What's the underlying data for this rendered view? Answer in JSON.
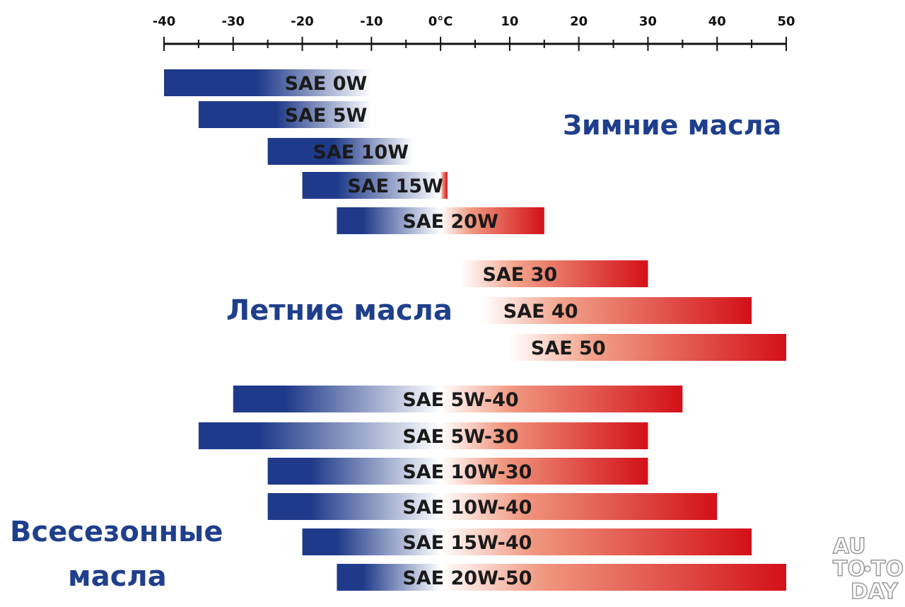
{
  "chart_data": {
    "type": "bar",
    "orientation": "horizontal",
    "x_axis": {
      "ticks": [
        -40,
        -30,
        -20,
        -10,
        0,
        10,
        20,
        30,
        40,
        50
      ],
      "tick_labels": [
        "-40",
        "-30",
        "-20",
        "-10",
        "0°C",
        "10",
        "20",
        "30",
        "40",
        "50"
      ],
      "xlim": [
        -40,
        50
      ]
    },
    "grid": false,
    "bars": [
      {
        "label": "SAE 0W",
        "from": -40,
        "to": -10
      },
      {
        "label": "SAE 5W",
        "from": -35,
        "to": -10
      },
      {
        "label": "SAE 10W",
        "from": -25,
        "to": -4
      },
      {
        "label": "SAE 15W",
        "from": -20,
        "to": 1
      },
      {
        "label": "SAE 20W",
        "from": -15,
        "to": 15
      },
      {
        "label": "SAE 30",
        "from": 3,
        "to": 30
      },
      {
        "label": "SAE 40",
        "from": 6,
        "to": 45
      },
      {
        "label": "SAE 50",
        "from": 10,
        "to": 50
      },
      {
        "label": "SAE 5W-40",
        "from": -30,
        "to": 35
      },
      {
        "label": "SAE 5W-30",
        "from": -35,
        "to": 30
      },
      {
        "label": "SAE 10W-30",
        "from": -25,
        "to": 30
      },
      {
        "label": "SAE 10W-40",
        "from": -25,
        "to": 40
      },
      {
        "label": "SAE 15W-40",
        "from": -20,
        "to": 45
      },
      {
        "label": "SAE 20W-50",
        "from": -15,
        "to": 50
      }
    ],
    "groups": {
      "winter": "Зимние масла",
      "summer": "Летние масла",
      "all_season_line1": "Всесезонные",
      "all_season_line2": "масла"
    },
    "colors": {
      "cold": "#1f3a8a",
      "hot": "#d31018",
      "label_text": "#1f3f8c"
    }
  },
  "watermark": {
    "line1": "AU",
    "line2a": "TO",
    "line2b": "TO",
    "line3": "DAY"
  }
}
